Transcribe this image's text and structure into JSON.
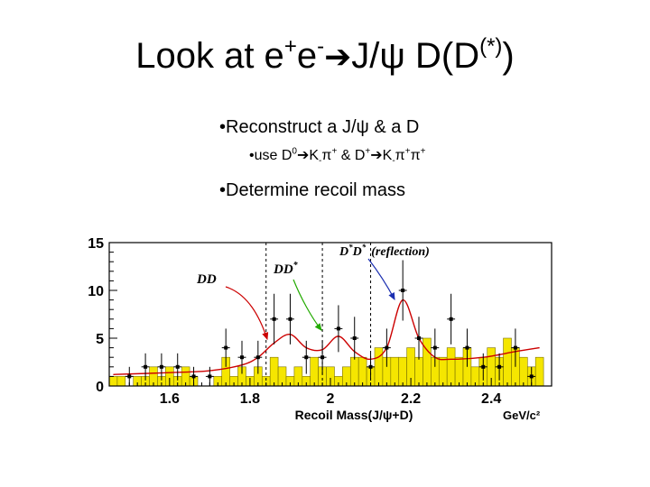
{
  "title": {
    "pre": "Look at e",
    "sup1": "+",
    "mid": "e",
    "sup2": "-",
    "arrow": "➔",
    "post": "J/ψ D(D",
    "sup3": "(*)",
    "end": ")"
  },
  "bullets": {
    "b1": "•Reconstruct a J/ψ & a D",
    "b2": {
      "pre": "•use D",
      "sup0": "0",
      "arrow1": "➔",
      "k1": "K",
      "ksub1": "-",
      "pi1": "π",
      "pisup1": "+",
      "mid": " & D",
      "dsup": "+",
      "arrow2": "➔",
      "k2": "K",
      "ksub2": "-",
      "pi2": "π",
      "pisup2": "+",
      "pi3": "π",
      "pisup3": "+"
    },
    "b3": "•Determine recoil mass"
  },
  "chart_data": {
    "type": "bar",
    "xlabel": "Recoil Mass(J/ψ+D)",
    "xunit": "GeV/c²",
    "xlim": [
      1.45,
      2.55
    ],
    "ylim": [
      0,
      15
    ],
    "xticks": [
      "1.6",
      "1.8",
      "2",
      "2.2",
      "2.4"
    ],
    "yticks": [
      "0",
      "5",
      "10",
      "15"
    ],
    "bin_width": 0.02,
    "background_hist": {
      "x": [
        1.46,
        1.48,
        1.5,
        1.52,
        1.54,
        1.56,
        1.58,
        1.6,
        1.62,
        1.64,
        1.66,
        1.68,
        1.7,
        1.72,
        1.74,
        1.76,
        1.78,
        1.8,
        1.82,
        1.84,
        1.86,
        1.88,
        1.9,
        1.92,
        1.94,
        1.96,
        1.98,
        2.0,
        2.02,
        2.04,
        2.06,
        2.08,
        2.1,
        2.12,
        2.14,
        2.16,
        2.18,
        2.2,
        2.22,
        2.24,
        2.26,
        2.28,
        2.3,
        2.32,
        2.34,
        2.36,
        2.38,
        2.4,
        2.42,
        2.44,
        2.46,
        2.48,
        2.5,
        2.52
      ],
      "values": [
        1,
        1,
        0,
        1,
        1,
        2,
        1,
        2,
        1,
        2,
        1,
        0,
        0,
        1,
        3,
        1,
        2,
        1,
        2,
        1,
        3,
        2,
        1,
        2,
        1,
        3,
        2,
        2,
        1,
        2,
        3,
        3,
        2,
        4,
        3,
        3,
        3,
        4,
        3,
        5,
        3,
        3,
        4,
        3,
        4,
        2,
        3,
        4,
        3,
        5,
        4,
        3,
        2,
        3
      ]
    },
    "signal_points": {
      "x": [
        1.5,
        1.54,
        1.58,
        1.62,
        1.66,
        1.7,
        1.74,
        1.78,
        1.82,
        1.86,
        1.9,
        1.94,
        1.98,
        2.02,
        2.06,
        2.1,
        2.14,
        2.18,
        2.22,
        2.26,
        2.3,
        2.34,
        2.38,
        2.42,
        2.46,
        2.5
      ],
      "y": [
        1,
        2,
        2,
        2,
        1,
        1,
        4,
        3,
        3,
        7,
        7,
        3,
        3,
        6,
        5,
        2,
        4,
        10,
        5,
        4,
        7,
        4,
        2,
        2,
        4,
        1
      ]
    },
    "fit_curve": {
      "x": [
        1.46,
        1.6,
        1.7,
        1.78,
        1.82,
        1.86,
        1.9,
        1.94,
        1.98,
        2.02,
        2.06,
        2.1,
        2.14,
        2.18,
        2.22,
        2.26,
        2.3,
        2.38,
        2.46,
        2.52
      ],
      "y": [
        1.2,
        1.4,
        1.6,
        2.2,
        3.0,
        4.5,
        5.4,
        4.0,
        3.8,
        5.2,
        3.6,
        2.8,
        4.0,
        9.0,
        5.0,
        3.0,
        2.8,
        3.0,
        3.6,
        4.0
      ]
    },
    "vlines": [
      1.84,
      1.98,
      2.1
    ],
    "annotations": {
      "dd": "DD",
      "ddstar": "DD",
      "ddstar_sup": "*",
      "dstar_dstar_1": "D",
      "dstar_dstar_2": "D",
      "dstar_sup": "*",
      "reflection": "(reflection)"
    },
    "colors": {
      "hist": "#f5e600",
      "fit": "#cc0000",
      "dd": "#cc0000",
      "ddstar": "#22aa00",
      "dstar": "#1a2eb0",
      "arrow_red": "#cc0000",
      "arrow_green": "#22aa00",
      "arrow_blue": "#1a2eb0"
    }
  }
}
